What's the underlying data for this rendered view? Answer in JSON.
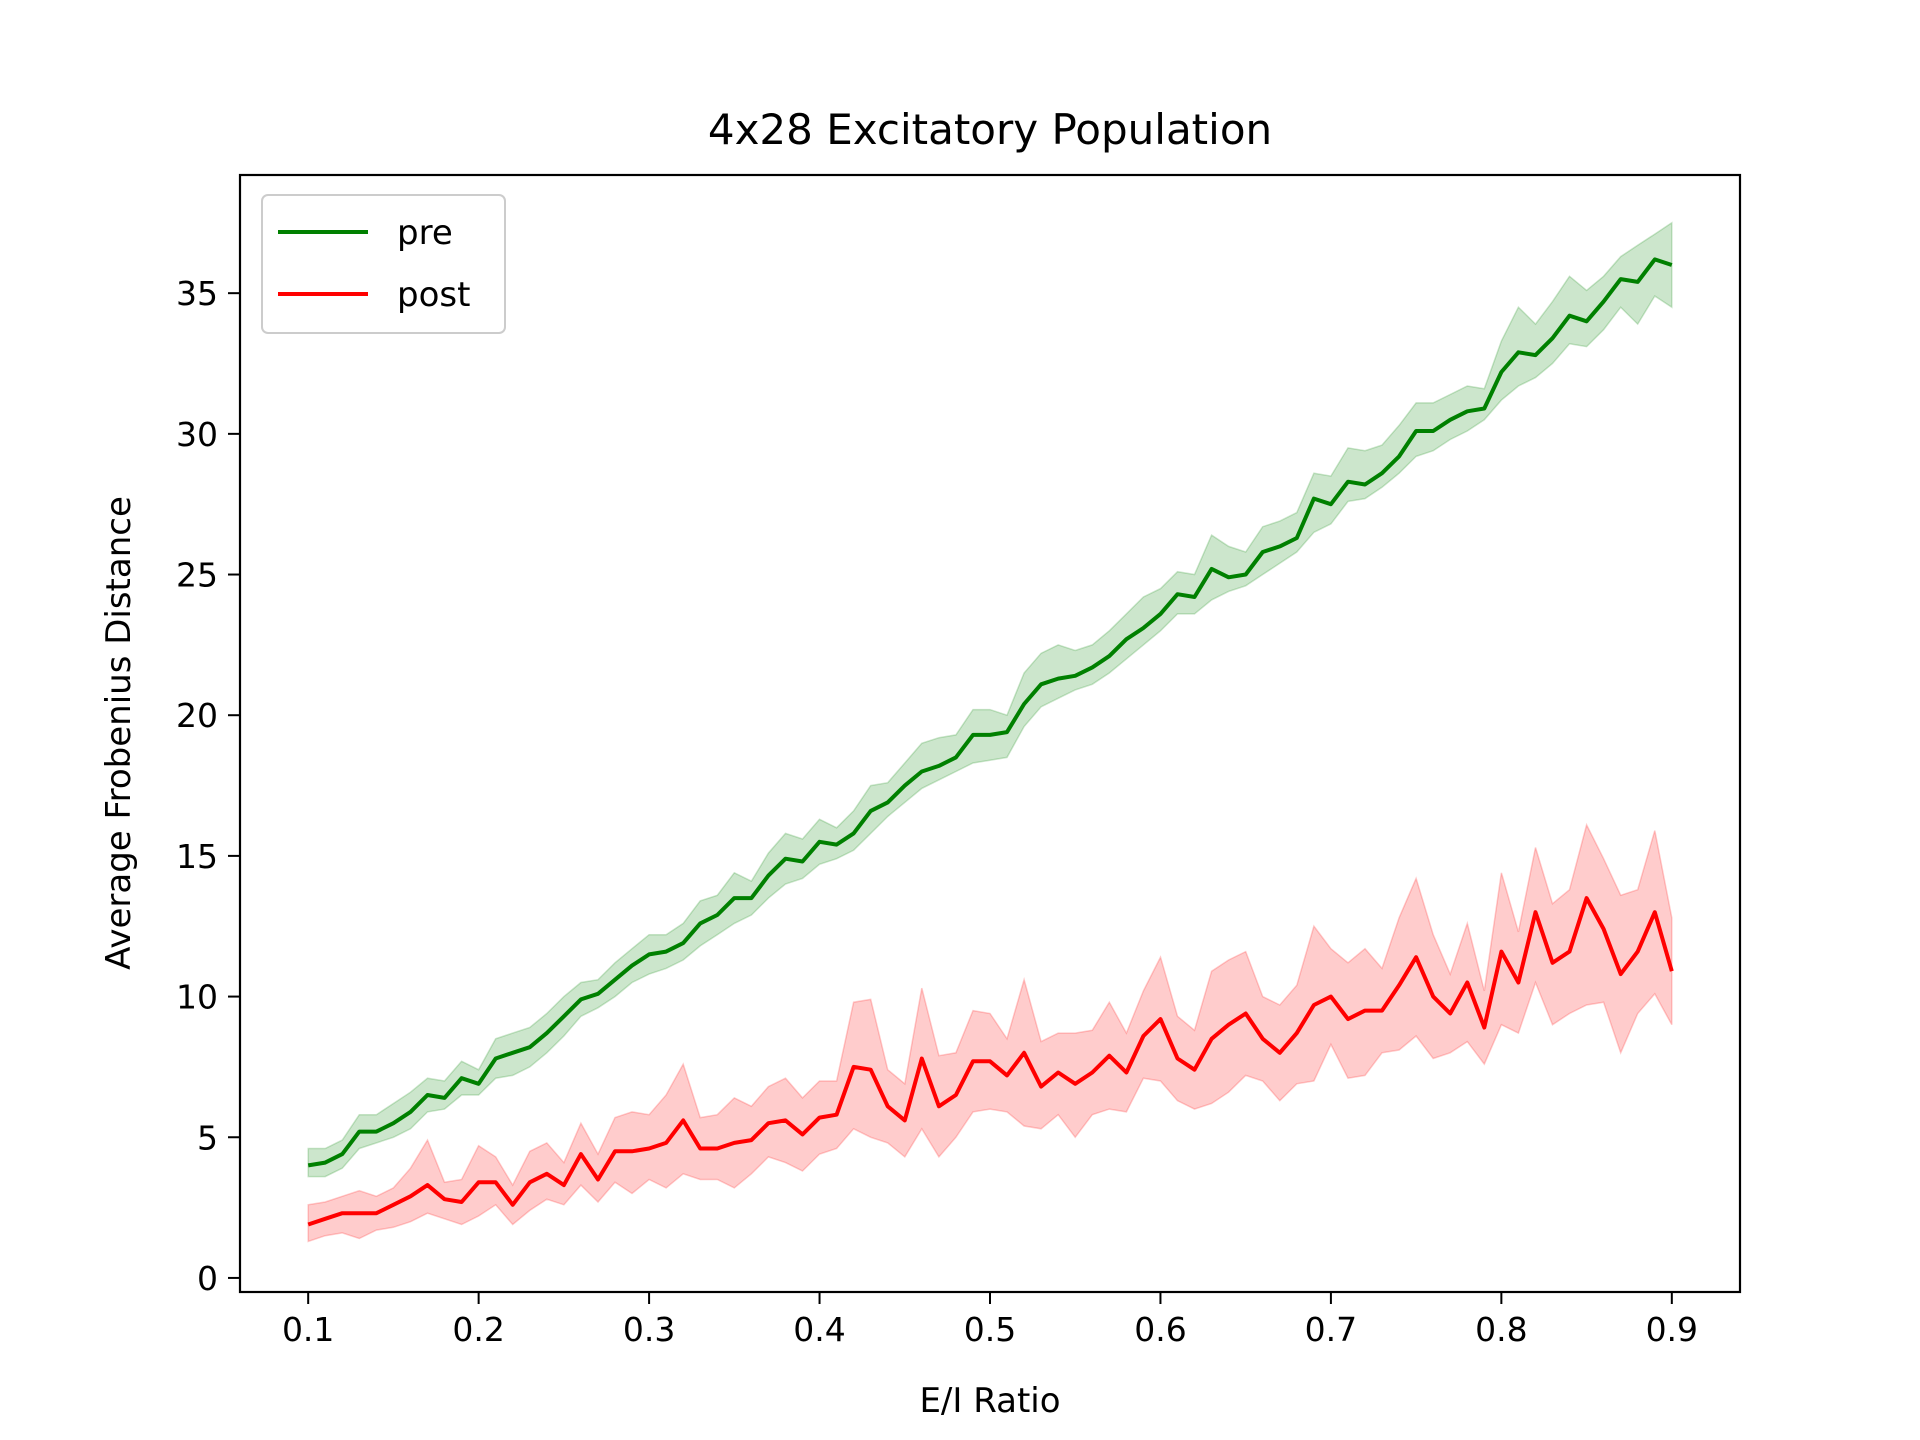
{
  "chart_data": {
    "type": "line",
    "title": "4x28 Excitatory Population",
    "xlabel": "E/I Ratio",
    "ylabel": "Average Frobenius Distance",
    "xlim": [
      0.06,
      0.94
    ],
    "ylim": [
      -0.5,
      39.2
    ],
    "xticks": [
      0.1,
      0.2,
      0.3,
      0.4,
      0.5,
      0.6,
      0.7,
      0.8,
      0.9
    ],
    "xtick_labels": [
      "0.1",
      "0.2",
      "0.3",
      "0.4",
      "0.5",
      "0.6",
      "0.7",
      "0.8",
      "0.9"
    ],
    "yticks": [
      0,
      5,
      10,
      15,
      20,
      25,
      30,
      35
    ],
    "ytick_labels": [
      "0",
      "5",
      "10",
      "15",
      "20",
      "25",
      "30",
      "35"
    ],
    "grid": false,
    "legend_position": "top-left",
    "x": [
      0.1,
      0.11,
      0.12,
      0.13,
      0.14,
      0.15,
      0.16,
      0.17,
      0.18,
      0.19,
      0.2,
      0.21,
      0.22,
      0.23,
      0.24,
      0.25,
      0.26,
      0.27,
      0.28,
      0.29,
      0.3,
      0.31,
      0.32,
      0.33,
      0.34,
      0.35,
      0.36,
      0.37,
      0.38,
      0.39,
      0.4,
      0.41,
      0.42,
      0.43,
      0.44,
      0.45,
      0.46,
      0.47,
      0.48,
      0.49,
      0.5,
      0.51,
      0.52,
      0.53,
      0.54,
      0.55,
      0.56,
      0.57,
      0.58,
      0.59,
      0.6,
      0.61,
      0.62,
      0.63,
      0.64,
      0.65,
      0.66,
      0.67,
      0.68,
      0.69,
      0.7,
      0.71,
      0.72,
      0.73,
      0.74,
      0.75,
      0.76,
      0.77,
      0.78,
      0.79,
      0.8,
      0.81,
      0.82,
      0.83,
      0.84,
      0.85,
      0.86,
      0.87,
      0.88,
      0.89,
      0.9
    ],
    "series": [
      {
        "name": "pre",
        "color": "#008000",
        "band_color": "rgba(0,128,0,0.2)",
        "values": [
          4.0,
          4.1,
          4.4,
          5.2,
          5.2,
          5.5,
          5.9,
          6.5,
          6.4,
          7.1,
          6.9,
          7.8,
          8.0,
          8.2,
          8.7,
          9.3,
          9.9,
          10.1,
          10.6,
          11.1,
          11.5,
          11.6,
          11.9,
          12.6,
          12.9,
          13.5,
          13.5,
          14.3,
          14.9,
          14.8,
          15.5,
          15.4,
          15.8,
          16.6,
          16.9,
          17.5,
          18.0,
          18.2,
          18.5,
          19.3,
          19.3,
          19.4,
          20.4,
          21.1,
          21.3,
          21.4,
          21.7,
          22.1,
          22.7,
          23.1,
          23.6,
          24.3,
          24.2,
          25.2,
          24.9,
          25.0,
          25.8,
          26.0,
          26.3,
          27.7,
          27.5,
          28.3,
          28.2,
          28.6,
          29.2,
          30.1,
          30.1,
          30.5,
          30.8,
          30.9,
          32.2,
          32.9,
          32.8,
          33.4,
          34.2,
          34.0,
          34.7,
          35.5,
          35.4,
          36.2,
          36.0
        ],
        "lower": [
          3.6,
          3.6,
          3.9,
          4.6,
          4.8,
          5.0,
          5.3,
          5.9,
          6.0,
          6.5,
          6.5,
          7.1,
          7.2,
          7.5,
          8.0,
          8.6,
          9.3,
          9.6,
          10.0,
          10.5,
          10.8,
          11.0,
          11.3,
          11.8,
          12.2,
          12.6,
          12.9,
          13.5,
          14.0,
          14.2,
          14.7,
          14.9,
          15.2,
          15.8,
          16.4,
          16.9,
          17.4,
          17.7,
          18.0,
          18.3,
          18.4,
          18.5,
          19.6,
          20.3,
          20.6,
          20.9,
          21.1,
          21.5,
          22.0,
          22.5,
          23.0,
          23.6,
          23.6,
          24.1,
          24.4,
          24.6,
          25.0,
          25.4,
          25.8,
          26.5,
          26.8,
          27.6,
          27.7,
          28.1,
          28.6,
          29.2,
          29.4,
          29.8,
          30.1,
          30.5,
          31.2,
          31.7,
          32.0,
          32.5,
          33.2,
          33.1,
          33.7,
          34.5,
          33.9,
          34.9,
          34.5
        ],
        "upper": [
          4.6,
          4.6,
          4.9,
          5.8,
          5.8,
          6.2,
          6.6,
          7.1,
          7.0,
          7.7,
          7.4,
          8.5,
          8.7,
          8.9,
          9.4,
          10.0,
          10.5,
          10.6,
          11.2,
          11.7,
          12.2,
          12.2,
          12.6,
          13.4,
          13.6,
          14.4,
          14.1,
          15.1,
          15.8,
          15.6,
          16.3,
          16.0,
          16.6,
          17.5,
          17.6,
          18.3,
          19.0,
          19.2,
          19.3,
          20.2,
          20.2,
          20.0,
          21.5,
          22.2,
          22.5,
          22.3,
          22.5,
          23.0,
          23.6,
          24.2,
          24.5,
          25.1,
          25.0,
          26.4,
          26.0,
          25.8,
          26.7,
          26.9,
          27.2,
          28.6,
          28.5,
          29.5,
          29.4,
          29.6,
          30.3,
          31.1,
          31.1,
          31.4,
          31.7,
          31.6,
          33.3,
          34.5,
          33.9,
          34.7,
          35.6,
          35.1,
          35.6,
          36.3,
          36.7,
          37.1,
          37.5
        ]
      },
      {
        "name": "post",
        "color": "#ff0000",
        "band_color": "rgba(255,0,0,0.2)",
        "values": [
          1.9,
          2.1,
          2.3,
          2.3,
          2.3,
          2.6,
          2.9,
          3.3,
          2.8,
          2.7,
          3.4,
          3.4,
          2.6,
          3.4,
          3.7,
          3.3,
          4.4,
          3.5,
          4.5,
          4.5,
          4.6,
          4.8,
          5.6,
          4.6,
          4.6,
          4.8,
          4.9,
          5.5,
          5.6,
          5.1,
          5.7,
          5.8,
          7.5,
          7.4,
          6.1,
          5.6,
          7.8,
          6.1,
          6.5,
          7.7,
          7.7,
          7.2,
          8.0,
          6.8,
          7.3,
          6.9,
          7.3,
          7.9,
          7.3,
          8.6,
          9.2,
          7.8,
          7.4,
          8.5,
          9.0,
          9.4,
          8.5,
          8.0,
          8.7,
          9.7,
          10.0,
          9.2,
          9.5,
          9.5,
          10.4,
          11.4,
          10.0,
          9.4,
          10.5,
          8.9,
          11.6,
          10.5,
          13.0,
          11.2,
          11.6,
          13.5,
          12.4,
          10.8,
          11.6,
          13.0,
          10.9
        ],
        "lower": [
          1.3,
          1.5,
          1.6,
          1.4,
          1.7,
          1.8,
          2.0,
          2.3,
          2.1,
          1.9,
          2.2,
          2.6,
          1.9,
          2.4,
          2.8,
          2.6,
          3.3,
          2.7,
          3.4,
          3.0,
          3.5,
          3.2,
          3.7,
          3.5,
          3.5,
          3.2,
          3.7,
          4.3,
          4.1,
          3.8,
          4.4,
          4.6,
          5.3,
          5.0,
          4.8,
          4.3,
          5.3,
          4.3,
          5.0,
          5.9,
          6.0,
          5.9,
          5.4,
          5.3,
          5.8,
          5.0,
          5.8,
          6.0,
          5.9,
          7.1,
          7.0,
          6.3,
          6.0,
          6.2,
          6.6,
          7.2,
          7.0,
          6.3,
          6.9,
          7.0,
          8.3,
          7.1,
          7.2,
          8.0,
          8.1,
          8.6,
          7.8,
          8.0,
          8.4,
          7.6,
          9.0,
          8.7,
          10.5,
          9.0,
          9.4,
          9.7,
          9.8,
          8.0,
          9.4,
          10.1,
          9.0
        ],
        "upper": [
          2.6,
          2.7,
          2.9,
          3.1,
          2.9,
          3.2,
          3.9,
          4.9,
          3.4,
          3.5,
          4.7,
          4.3,
          3.3,
          4.5,
          4.8,
          4.1,
          5.5,
          4.4,
          5.7,
          5.9,
          5.8,
          6.5,
          7.6,
          5.7,
          5.8,
          6.4,
          6.1,
          6.8,
          7.1,
          6.4,
          7.0,
          7.0,
          9.8,
          9.9,
          7.4,
          6.9,
          10.3,
          7.9,
          8.0,
          9.5,
          9.4,
          8.5,
          10.6,
          8.4,
          8.7,
          8.7,
          8.8,
          9.8,
          8.7,
          10.2,
          11.4,
          9.3,
          8.8,
          10.9,
          11.3,
          11.6,
          10.0,
          9.7,
          10.4,
          12.5,
          11.7,
          11.2,
          11.7,
          11.0,
          12.8,
          14.2,
          12.2,
          10.8,
          12.6,
          10.2,
          14.4,
          12.3,
          15.3,
          13.3,
          13.8,
          16.1,
          14.9,
          13.6,
          13.8,
          15.9,
          12.8
        ]
      }
    ]
  }
}
